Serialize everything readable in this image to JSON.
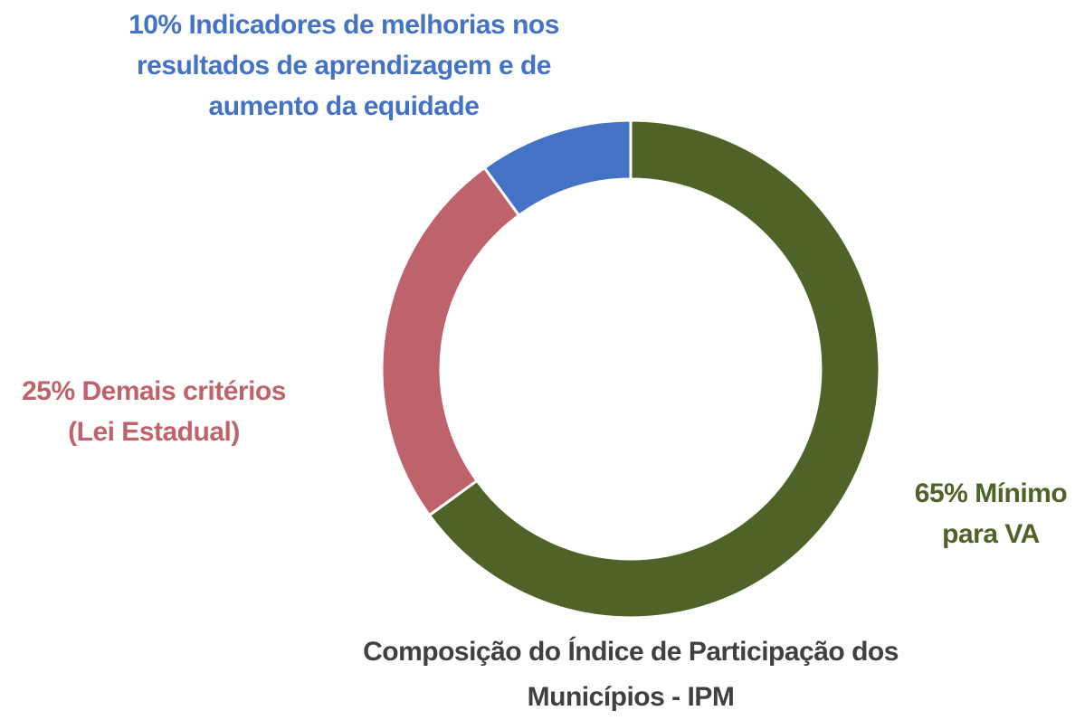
{
  "chart_data": {
    "type": "donut",
    "title": "Composição do Índice de Participação dos Municípios - IPM",
    "categories": [
      "Mínimo para VA",
      "Demais critérios (Lei Estadual)",
      "Indicadores de melhorias nos resultados de aprendizagem e de aumento da equidade"
    ],
    "values": [
      65,
      25,
      10
    ],
    "value_labels": [
      "65%",
      "25%",
      "10%"
    ],
    "colors": [
      "#4f6228",
      "#be626b",
      "#4472c4"
    ]
  }
}
